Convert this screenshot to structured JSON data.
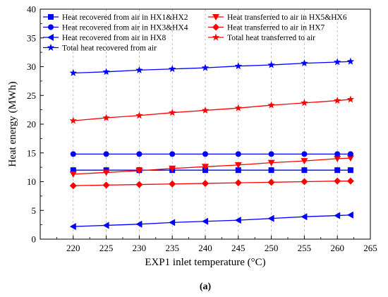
{
  "chart_data": {
    "type": "line",
    "xlabel": "EXP1 inlet temperature (°C)",
    "ylabel": "Heat energy (MWh)",
    "xlim": [
      215,
      265
    ],
    "ylim": [
      0,
      40
    ],
    "xticks": [
      220,
      225,
      230,
      235,
      240,
      245,
      250,
      255,
      260,
      265
    ],
    "yticks": [
      0,
      5,
      10,
      15,
      20,
      25,
      30,
      35,
      40
    ],
    "grid": "vertical dashed",
    "legend_position": "top",
    "caption": "(a)",
    "x": [
      220,
      225,
      230,
      235,
      240,
      245,
      250,
      255,
      260,
      262
    ],
    "series": [
      {
        "name": "Heat recovered from air in HX1&HX2",
        "color": "#0000ff",
        "marker": "square",
        "values": [
          12.0,
          12.0,
          12.0,
          12.0,
          12.0,
          12.0,
          12.0,
          12.0,
          12.0,
          12.0
        ]
      },
      {
        "name": "Heat transferred to air in HX5&HX6",
        "color": "#ff0000",
        "marker": "triangle-down",
        "values": [
          11.3,
          11.6,
          11.9,
          12.3,
          12.6,
          12.9,
          13.3,
          13.6,
          14.0,
          14.1
        ]
      },
      {
        "name": "Heat recovered from air in HX3&HX4",
        "color": "#0000ff",
        "marker": "circle",
        "values": [
          14.8,
          14.8,
          14.8,
          14.8,
          14.8,
          14.8,
          14.8,
          14.8,
          14.8,
          14.8
        ]
      },
      {
        "name": "Heat transferred to air in HX7",
        "color": "#ff0000",
        "marker": "diamond",
        "values": [
          9.3,
          9.4,
          9.5,
          9.6,
          9.7,
          9.8,
          9.9,
          10.0,
          10.1,
          10.1
        ]
      },
      {
        "name": "Heat recovered from air in HX8",
        "color": "#0000ff",
        "marker": "triangle-left",
        "values": [
          2.2,
          2.4,
          2.6,
          2.9,
          3.1,
          3.3,
          3.6,
          3.9,
          4.1,
          4.2
        ]
      },
      {
        "name": "Total heat transferred to air",
        "color": "#ff0000",
        "marker": "star",
        "values": [
          20.6,
          21.1,
          21.5,
          22.0,
          22.4,
          22.8,
          23.3,
          23.7,
          24.1,
          24.3
        ]
      },
      {
        "name": "Total heat recovered from air",
        "color": "#0000ff",
        "marker": "star",
        "values": [
          28.9,
          29.1,
          29.4,
          29.6,
          29.8,
          30.1,
          30.3,
          30.6,
          30.8,
          30.9
        ]
      }
    ]
  }
}
